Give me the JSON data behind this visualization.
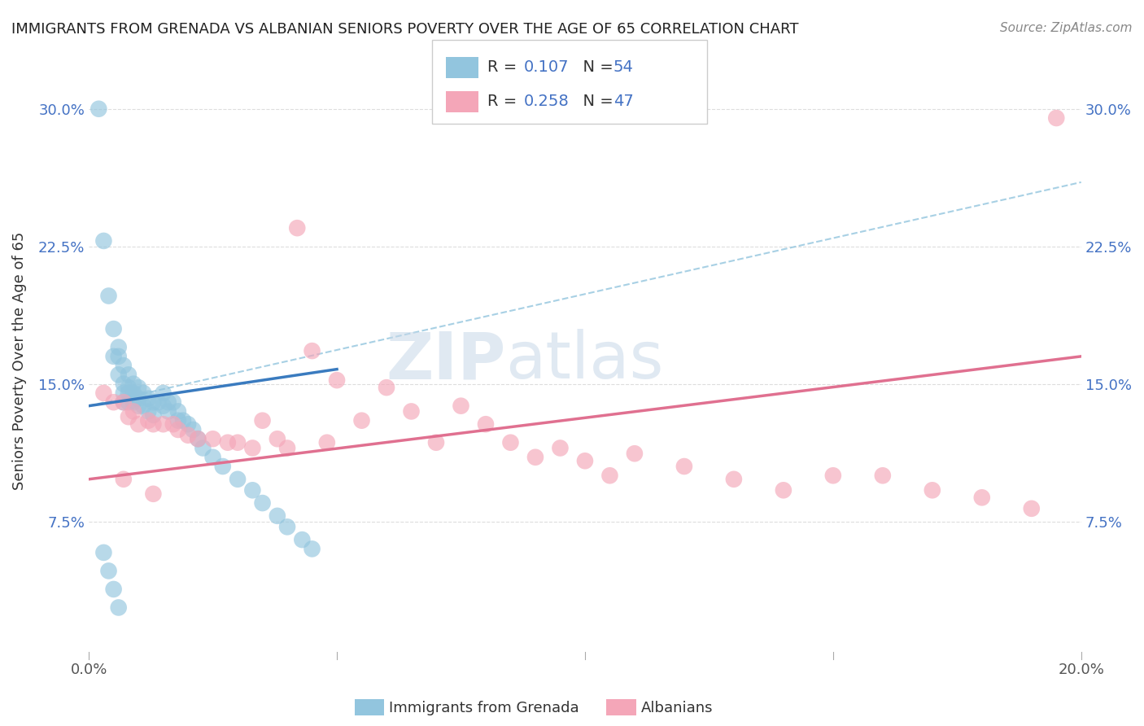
{
  "title": "IMMIGRANTS FROM GRENADA VS ALBANIAN SENIORS POVERTY OVER THE AGE OF 65 CORRELATION CHART",
  "source": "Source: ZipAtlas.com",
  "ylabel": "Seniors Poverty Over the Age of 65",
  "xlim": [
    0.0,
    0.2
  ],
  "ylim": [
    0.0,
    0.325
  ],
  "color_blue": "#92c5de",
  "color_pink": "#f4a6b8",
  "color_blue_line": "#3a7bbf",
  "color_pink_line": "#e07090",
  "color_dash": "#92c5de",
  "R_blue": 0.107,
  "N_blue": 54,
  "R_pink": 0.258,
  "N_pink": 47,
  "blue_line_y0": 0.138,
  "blue_line_y1": 0.158,
  "blue_line_x0": 0.0,
  "blue_line_x1": 0.05,
  "pink_line_y0": 0.098,
  "pink_line_y1": 0.165,
  "pink_line_x0": 0.0,
  "pink_line_x1": 0.2,
  "dash_line_y0": 0.138,
  "dash_line_y1": 0.26,
  "dash_line_x0": 0.0,
  "dash_line_x1": 0.2,
  "blue_x": [
    0.002,
    0.003,
    0.004,
    0.005,
    0.005,
    0.006,
    0.006,
    0.006,
    0.007,
    0.007,
    0.007,
    0.007,
    0.008,
    0.008,
    0.008,
    0.008,
    0.009,
    0.009,
    0.009,
    0.01,
    0.01,
    0.01,
    0.011,
    0.011,
    0.012,
    0.012,
    0.013,
    0.013,
    0.014,
    0.015,
    0.015,
    0.016,
    0.016,
    0.017,
    0.018,
    0.018,
    0.019,
    0.02,
    0.021,
    0.022,
    0.023,
    0.025,
    0.027,
    0.03,
    0.033,
    0.035,
    0.038,
    0.04,
    0.043,
    0.045,
    0.003,
    0.004,
    0.005,
    0.006
  ],
  "blue_y": [
    0.3,
    0.228,
    0.198,
    0.18,
    0.165,
    0.17,
    0.165,
    0.155,
    0.16,
    0.15,
    0.145,
    0.14,
    0.155,
    0.148,
    0.145,
    0.14,
    0.15,
    0.145,
    0.14,
    0.148,
    0.142,
    0.138,
    0.145,
    0.138,
    0.142,
    0.135,
    0.14,
    0.133,
    0.14,
    0.145,
    0.138,
    0.14,
    0.135,
    0.14,
    0.135,
    0.13,
    0.13,
    0.128,
    0.125,
    0.12,
    0.115,
    0.11,
    0.105,
    0.098,
    0.092,
    0.085,
    0.078,
    0.072,
    0.065,
    0.06,
    0.058,
    0.048,
    0.038,
    0.028
  ],
  "pink_x": [
    0.003,
    0.005,
    0.007,
    0.008,
    0.009,
    0.01,
    0.012,
    0.013,
    0.015,
    0.017,
    0.018,
    0.02,
    0.022,
    0.025,
    0.028,
    0.03,
    0.033,
    0.035,
    0.038,
    0.04,
    0.042,
    0.045,
    0.048,
    0.05,
    0.055,
    0.06,
    0.065,
    0.07,
    0.075,
    0.08,
    0.085,
    0.09,
    0.095,
    0.1,
    0.105,
    0.11,
    0.12,
    0.13,
    0.14,
    0.15,
    0.16,
    0.17,
    0.18,
    0.19,
    0.195,
    0.007,
    0.013
  ],
  "pink_y": [
    0.145,
    0.14,
    0.14,
    0.132,
    0.135,
    0.128,
    0.13,
    0.128,
    0.128,
    0.128,
    0.125,
    0.122,
    0.12,
    0.12,
    0.118,
    0.118,
    0.115,
    0.13,
    0.12,
    0.115,
    0.235,
    0.168,
    0.118,
    0.152,
    0.13,
    0.148,
    0.135,
    0.118,
    0.138,
    0.128,
    0.118,
    0.11,
    0.115,
    0.108,
    0.1,
    0.112,
    0.105,
    0.098,
    0.092,
    0.1,
    0.1,
    0.092,
    0.088,
    0.082,
    0.295,
    0.098,
    0.09
  ]
}
